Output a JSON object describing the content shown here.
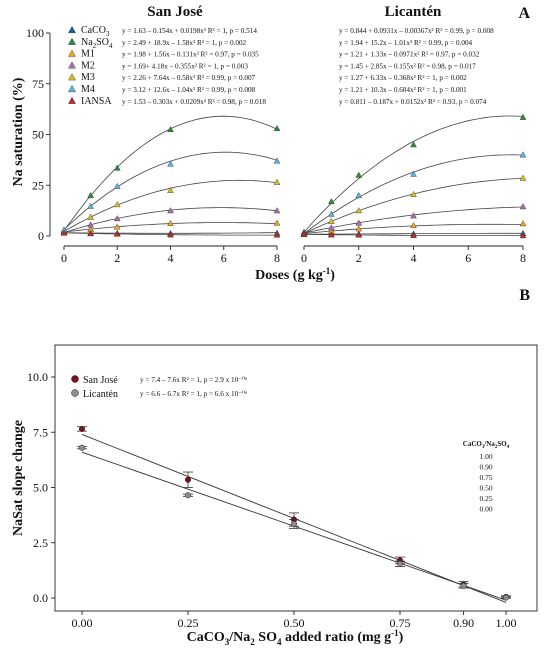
{
  "chart_data": [
    {
      "type": "scatter",
      "panel_label": "A",
      "ylabel": "Na saturation (%)",
      "xlabel": "Doses (g kg",
      "xlabel_sup": "-1",
      "xlabel_close": ")",
      "x_ticks": [
        "0",
        "2",
        "4",
        "6",
        "8"
      ],
      "y_ticks": [
        "0",
        "25",
        "50",
        "75",
        "100"
      ],
      "xlim": [
        0,
        8
      ],
      "ylim": [
        0,
        100
      ],
      "grid": false,
      "legend_position": "top-left",
      "x": [
        0,
        1,
        2,
        4,
        8
      ],
      "series_names": [
        "CaCO",
        "Na",
        "M1",
        "M2",
        "M3",
        "M4",
        "IANSA"
      ],
      "series_subs": [
        [
          "3",
          ""
        ],
        [
          "2",
          "SO"
        ],
        [
          "",
          ""
        ],
        [
          "",
          ""
        ],
        [
          "",
          ""
        ],
        [
          "",
          ""
        ],
        [
          "",
          ""
        ]
      ],
      "series_sub2": [
        "",
        "4",
        "",
        "",
        "",
        "",
        ""
      ],
      "series_colors": [
        "#1f5f97",
        "#2e8b3a",
        "#f2a21b",
        "#b06bb0",
        "#d4c020",
        "#59b6e0",
        "#c62828"
      ],
      "facets": [
        {
          "title": "San José",
          "series": [
            {
              "values": [
                1.6,
                1.5,
                1.4,
                1.3,
                1.4
              ],
              "coef": [
                1.63,
                -0.154,
                0.0198
              ],
              "equation": "y = 1.63 – 0.154x + 0.0198x²  R² = 1, p = 0.514"
            },
            {
              "values": [
                2.5,
                20.0,
                33.5,
                52.5,
                53.0
              ],
              "coef": [
                2.49,
                18.9,
                -1.58
              ],
              "equation": "y = 2.49 + 18.9x – 1.58x²  R² = 1, p = 0.002"
            },
            {
              "values": [
                2.0,
                3.3,
                4.5,
                6.2,
                6.4
              ],
              "coef": [
                1.98,
                1.56,
                -0.131
              ],
              "equation": "y = 1.98 + 1.56x – 0.131x²  R² = 0.97, p = 0.035"
            },
            {
              "values": [
                1.7,
                5.5,
                8.6,
                12.5,
                12.5
              ],
              "coef": [
                1.69,
                4.18,
                -0.355
              ],
              "equation": "y = 1.69+ 4.18x – 0.355x²  R² = 1, p = 0.003"
            },
            {
              "values": [
                2.3,
                9.3,
                15.5,
                22.5,
                26.5
              ],
              "coef": [
                2.26,
                7.64,
                -0.58
              ],
              "equation": "y = 2.26 + 7.64x – 0.58x²  R² = 0.99, p = 0.007"
            },
            {
              "values": [
                3.1,
                14.7,
                24.5,
                35.5,
                37.0
              ],
              "coef": [
                3.12,
                12.6,
                -1.04
              ],
              "equation": "y = 3.12 + 12.6x – 1.04x²  R² = 0.99, p = 0.008"
            },
            {
              "values": [
                1.5,
                1.2,
                1.0,
                0.6,
                0.5
              ],
              "coef": [
                1.53,
                -0.303,
                0.0209
              ],
              "equation": "y = 1.53 – 0.303x + 0.0209x²  R² = 0.98, p = 0.018"
            }
          ]
        },
        {
          "title": "Licantén",
          "series": [
            {
              "values": [
                0.8,
                0.9,
                1.0,
                1.1,
                1.3
              ],
              "coef": [
                0.844,
                0.0931,
                -0.00367
              ],
              "equation": "y = 0.844 + 0.0931x – 0.00367x²  R² = 0.99, p = 0.008"
            },
            {
              "values": [
                1.9,
                17.0,
                30.0,
                45.0,
                58.5
              ],
              "coef": [
                1.94,
                15.2,
                -1.01
              ],
              "equation": "y = 1.94 + 15.2x – 1.01x²  R² = 0.99, p = 0.004"
            },
            {
              "values": [
                1.2,
                2.4,
                3.6,
                5.2,
                6.1
              ],
              "coef": [
                1.21,
                1.33,
                -0.0971
              ],
              "equation": "y = 1.21 + 1.33x – 0.0971x²  R² = 0.97, p = 0.032"
            },
            {
              "values": [
                1.5,
                4.1,
                6.4,
                10.0,
                14.5
              ],
              "coef": [
                1.45,
                2.85,
                -0.155
              ],
              "equation": "y = 1.45 + 2.85x – 0.155x²  R² = 0.98, p = 0.017"
            },
            {
              "values": [
                1.3,
                7.2,
                12.5,
                20.5,
                28.5
              ],
              "coef": [
                1.27,
                6.33,
                -0.368
              ],
              "equation": "y = 1.27 + 6.33x – 0.368x²  R² = 1, p = 0.002"
            },
            {
              "values": [
                1.2,
                10.8,
                20.0,
                30.5,
                40.0
              ],
              "coef": [
                1.21,
                10.3,
                -0.684
              ],
              "equation": "y = 1.21 + 10.3x – 0.684x²  R² = 1, p = 0.001"
            },
            {
              "values": [
                0.8,
                0.6,
                0.5,
                0.3,
                0.2
              ],
              "coef": [
                0.811,
                -0.187,
                0.0152
              ],
              "equation": "y = 0.811 – 0.187x + 0.0152x²  R² = 0.93, p = 0.074"
            }
          ]
        }
      ]
    },
    {
      "type": "scatter",
      "panel_label": "B",
      "ylabel": "NaSat slope change",
      "xlabel_parts": {
        "a": "CaCO",
        "a_sub": "3",
        "b": "/Na",
        "b_sub": "2",
        "c": " SO",
        "c_sub": "4",
        "d": " added ratio (mg g",
        "sup": "-1",
        "e": ")"
      },
      "categories": [
        "0.00",
        "0.25",
        "0.50",
        "0.75",
        "0.90",
        "1.00"
      ],
      "x": [
        0.0,
        0.25,
        0.5,
        0.75,
        0.9,
        1.0
      ],
      "y_ticks": [
        "0.0",
        "2.5",
        "5.0",
        "7.5",
        "10.0"
      ],
      "ylim": [
        0,
        10
      ],
      "grid": false,
      "legend_position": "top-left",
      "series": [
        {
          "name": "San José",
          "color": "#7a1020",
          "values": [
            7.65,
            5.35,
            3.55,
            1.7,
            0.62,
            0.05
          ],
          "errors": [
            0.1,
            0.35,
            0.3,
            0.15,
            0.12,
            0.05
          ],
          "fit": [
            7.4,
            -7.6
          ],
          "equation": "y = 7.4 – 7.6x  R² = 1, p = 2.9 x 10⁻⁰⁶"
        },
        {
          "name": "Licantén",
          "color": "#8c8c8c",
          "values": [
            6.8,
            4.65,
            3.35,
            1.55,
            0.55,
            0.02
          ],
          "errors": [
            0.05,
            0.05,
            0.2,
            0.12,
            0.1,
            0.03
          ],
          "fit": [
            6.6,
            -6.7
          ],
          "equation": "y = 6.6 – 6.7x  R² = 1, p = 6.6 x 10⁻⁰⁶"
        }
      ],
      "ratio_legend": {
        "title_a": "CaCO",
        "title_a_sub": "3",
        "title_b": "/Na",
        "title_b_sub": "2",
        "title_c": "SO",
        "title_c_sub": "4",
        "items": [
          "1.00",
          "0.90",
          "0.75",
          "0.50",
          "0.25",
          "0.00"
        ]
      }
    }
  ]
}
